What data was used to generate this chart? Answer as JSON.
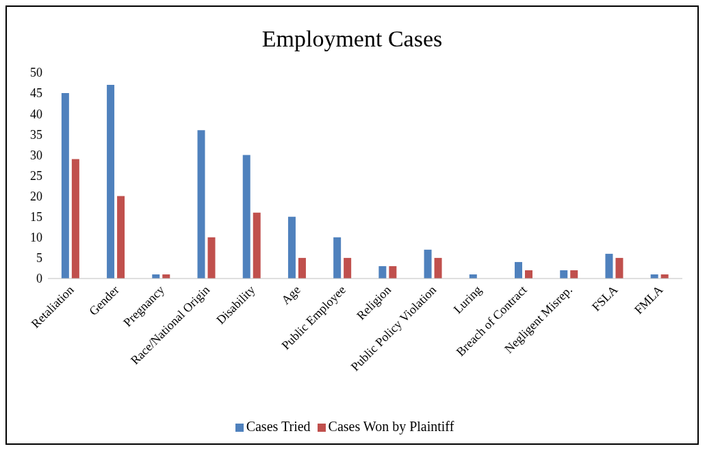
{
  "chart_data": {
    "type": "bar",
    "title": "Employment Cases",
    "categories": [
      "Retaliation",
      "Gender",
      "Pregnancy",
      "Race/National Origin",
      "Disability",
      "Age",
      "Public Employee",
      "Religion",
      "Public Policy Violation",
      "Luring",
      "Breach of Contract",
      "Negligent Misrep.",
      "FSLA",
      "FMLA"
    ],
    "series": [
      {
        "name": "Cases Tried",
        "color": "#4f81bd",
        "values": [
          45,
          47,
          1,
          36,
          30,
          15,
          10,
          3,
          7,
          1,
          4,
          2,
          6,
          1
        ]
      },
      {
        "name": "Cases Won by Plaintiff",
        "color": "#c0504d",
        "values": [
          29,
          20,
          1,
          10,
          16,
          5,
          5,
          3,
          5,
          0,
          2,
          2,
          5,
          1
        ]
      }
    ],
    "ylim": [
      0,
      50
    ],
    "yticks": [
      0,
      5,
      10,
      15,
      20,
      25,
      30,
      35,
      40,
      45,
      50
    ],
    "grid": false,
    "legend": "bottom"
  }
}
